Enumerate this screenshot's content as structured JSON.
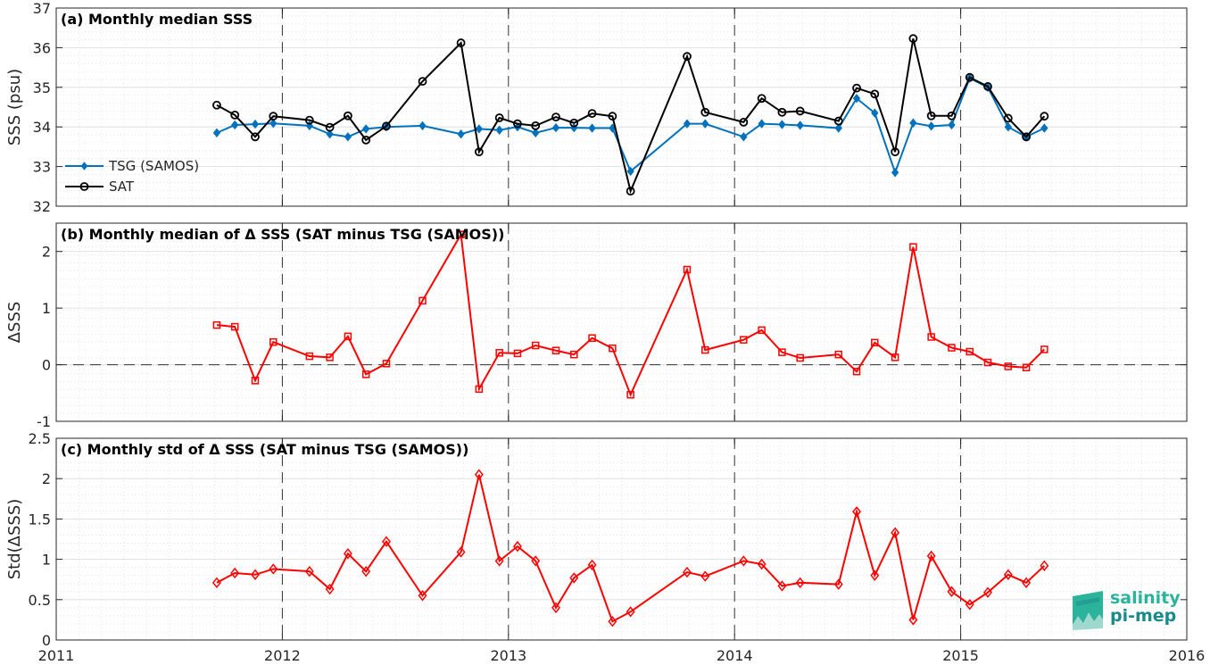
{
  "chart_data": [
    {
      "type": "line",
      "title": "(a) Monthly median SSS",
      "ylabel": "SSS (psu)",
      "ylim": [
        32,
        37
      ],
      "yticks": [
        "32",
        "33",
        "34",
        "35",
        "36",
        "37"
      ],
      "xlim": [
        2011,
        2016
      ],
      "legend_position": "left",
      "series": [
        {
          "name": "TSG (SAMOS)",
          "color": "#0072bd",
          "marker": "diamond",
          "x": [
            2011.71,
            2011.79,
            2011.88,
            2011.96,
            2012.12,
            2012.21,
            2012.29,
            2012.37,
            2012.46,
            2012.62,
            2012.79,
            2012.87,
            2012.96,
            2013.04,
            2013.12,
            2013.21,
            2013.29,
            2013.37,
            2013.46,
            2013.54,
            2013.79,
            2013.87,
            2014.04,
            2014.12,
            2014.21,
            2014.29,
            2014.46,
            2014.54,
            2014.62,
            2014.71,
            2014.79,
            2014.87,
            2014.96,
            2015.04,
            2015.12,
            2015.21,
            2015.29,
            2015.37
          ],
          "y": [
            33.85,
            34.05,
            34.07,
            34.09,
            34.03,
            33.82,
            33.75,
            33.95,
            34.0,
            34.03,
            33.82,
            33.95,
            33.92,
            34.0,
            33.85,
            33.98,
            33.98,
            33.97,
            33.97,
            32.88,
            34.08,
            34.08,
            33.75,
            34.08,
            34.06,
            34.04,
            33.97,
            34.72,
            34.35,
            32.85,
            34.1,
            34.02,
            34.05,
            35.23,
            35.0,
            34.0,
            33.75,
            33.97
          ]
        },
        {
          "name": "SAT",
          "color": "#000000",
          "marker": "circle",
          "x": [
            2011.71,
            2011.79,
            2011.88,
            2011.96,
            2012.12,
            2012.21,
            2012.29,
            2012.37,
            2012.46,
            2012.62,
            2012.79,
            2012.87,
            2012.96,
            2013.04,
            2013.12,
            2013.21,
            2013.29,
            2013.37,
            2013.46,
            2013.54,
            2013.79,
            2013.87,
            2014.04,
            2014.12,
            2014.21,
            2014.29,
            2014.46,
            2014.54,
            2014.62,
            2014.71,
            2014.79,
            2014.87,
            2014.96,
            2015.04,
            2015.12,
            2015.21,
            2015.29,
            2015.37
          ],
          "y": [
            34.55,
            34.3,
            33.75,
            34.27,
            34.17,
            33.99,
            34.28,
            33.67,
            34.02,
            35.15,
            36.12,
            33.37,
            34.23,
            34.08,
            34.03,
            34.25,
            34.1,
            34.34,
            34.27,
            32.38,
            35.78,
            34.37,
            34.12,
            34.72,
            34.37,
            34.4,
            34.15,
            34.98,
            34.83,
            33.37,
            36.23,
            34.28,
            34.28,
            35.25,
            35.02,
            34.22,
            33.75,
            34.27
          ]
        }
      ]
    },
    {
      "type": "line",
      "title": "(b) Monthly median of Δ SSS (SAT minus TSG (SAMOS))",
      "ylabel": "ΔSSS",
      "ylim": [
        -1,
        2.5
      ],
      "yticks": [
        "-1",
        "0",
        "1",
        "2"
      ],
      "xlim": [
        2011,
        2016
      ],
      "series": [
        {
          "color": "#ff0000",
          "marker": "square",
          "x": [
            2011.71,
            2011.79,
            2011.88,
            2011.96,
            2012.12,
            2012.21,
            2012.29,
            2012.37,
            2012.46,
            2012.62,
            2012.79,
            2012.87,
            2012.96,
            2013.04,
            2013.12,
            2013.21,
            2013.29,
            2013.37,
            2013.46,
            2013.54,
            2013.79,
            2013.87,
            2014.04,
            2014.12,
            2014.21,
            2014.29,
            2014.46,
            2014.54,
            2014.62,
            2014.71,
            2014.79,
            2014.87,
            2014.96,
            2015.04,
            2015.12,
            2015.21,
            2015.29,
            2015.37
          ],
          "y": [
            0.7,
            0.67,
            -0.28,
            0.4,
            0.15,
            0.13,
            0.5,
            -0.17,
            0.02,
            1.13,
            2.3,
            -0.43,
            0.21,
            0.2,
            0.34,
            0.25,
            0.18,
            0.47,
            0.29,
            -0.53,
            1.68,
            0.26,
            0.44,
            0.61,
            0.22,
            0.12,
            0.18,
            -0.12,
            0.39,
            0.13,
            2.08,
            0.49,
            0.3,
            0.23,
            0.04,
            -0.03,
            -0.05,
            0.27
          ]
        }
      ]
    },
    {
      "type": "line",
      "title": "(c) Monthly std of Δ SSS (SAT minus TSG (SAMOS))",
      "ylabel": "Std(ΔSSS)",
      "ylim": [
        0,
        2.5
      ],
      "yticks": [
        "0",
        "0.5",
        "1",
        "1.5",
        "2",
        "2.5"
      ],
      "xlim": [
        2011,
        2016
      ],
      "xticks": [
        "2011",
        "2012",
        "2013",
        "2014",
        "2015",
        "2016"
      ],
      "series": [
        {
          "color": "#ff0000",
          "marker": "diamond",
          "x": [
            2011.71,
            2011.79,
            2011.88,
            2011.96,
            2012.12,
            2012.21,
            2012.29,
            2012.37,
            2012.46,
            2012.62,
            2012.79,
            2012.87,
            2012.96,
            2013.04,
            2013.12,
            2013.21,
            2013.29,
            2013.37,
            2013.46,
            2013.54,
            2013.79,
            2013.87,
            2014.04,
            2014.12,
            2014.21,
            2014.29,
            2014.46,
            2014.54,
            2014.62,
            2014.71,
            2014.79,
            2014.87,
            2014.96,
            2015.04,
            2015.12,
            2015.21,
            2015.29,
            2015.37
          ],
          "y": [
            0.71,
            0.83,
            0.81,
            0.88,
            0.85,
            0.63,
            1.07,
            0.85,
            1.22,
            0.55,
            1.09,
            2.05,
            0.98,
            1.16,
            0.98,
            0.4,
            0.77,
            0.93,
            0.23,
            0.35,
            0.84,
            0.79,
            0.98,
            0.94,
            0.67,
            0.71,
            0.69,
            1.59,
            0.8,
            1.33,
            0.25,
            1.04,
            0.6,
            0.44,
            0.59,
            0.81,
            0.71,
            0.92
          ]
        }
      ]
    }
  ],
  "logo": {
    "line1": "salinity",
    "line2": "pi-mep"
  }
}
